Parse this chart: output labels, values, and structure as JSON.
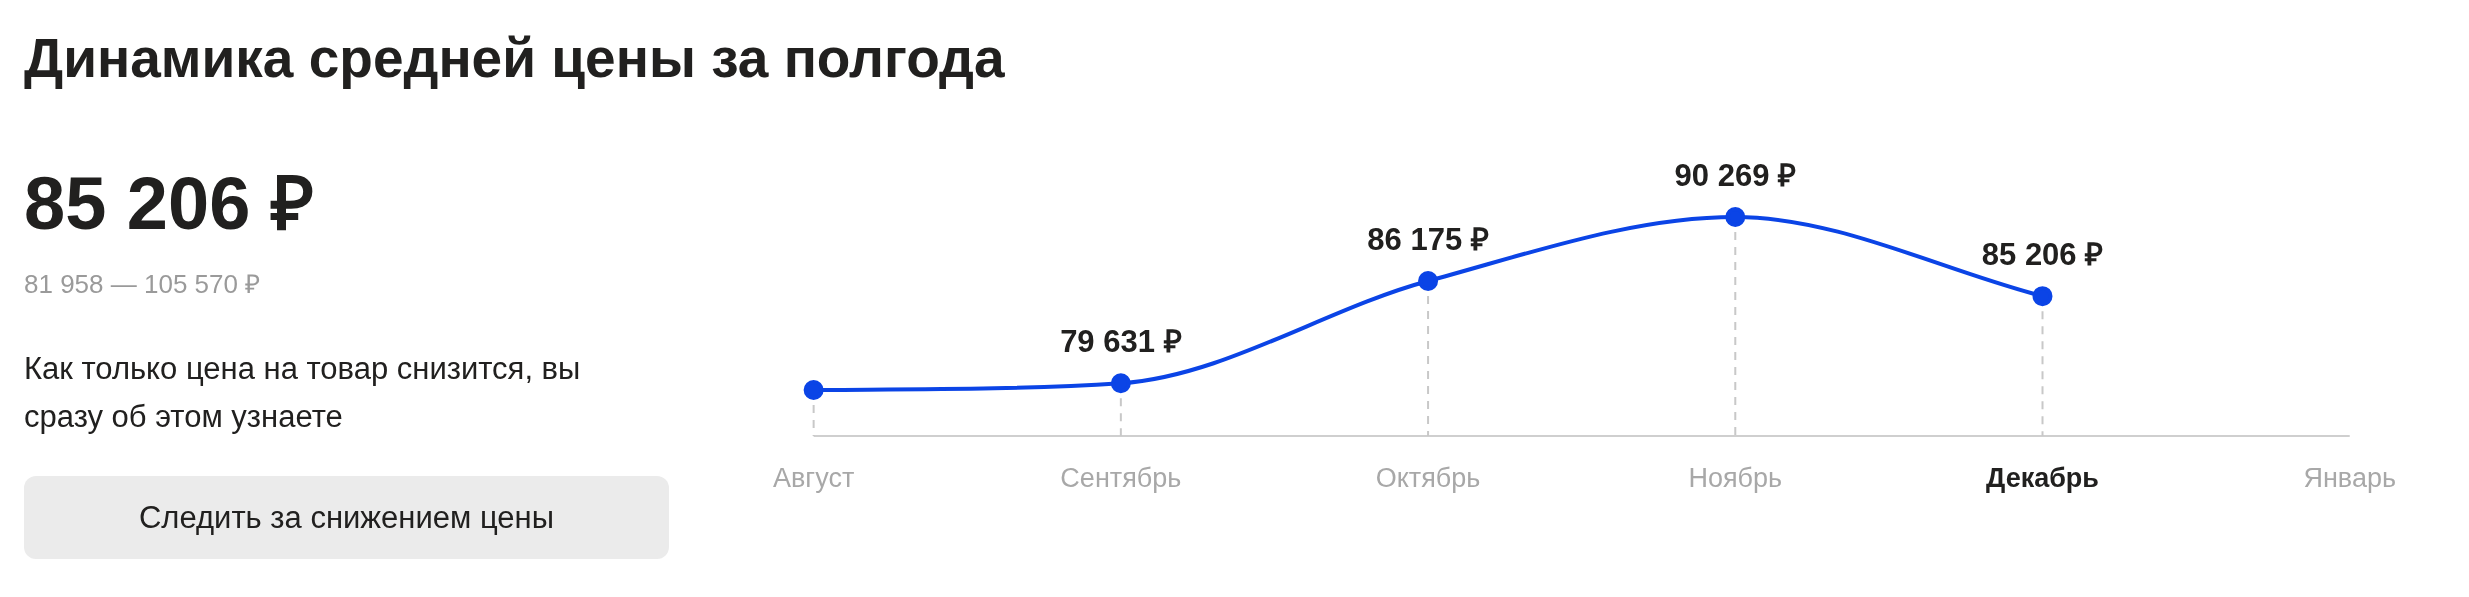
{
  "chart_data": {
    "type": "line",
    "title": "Динамика средней цены за полгода",
    "categories": [
      "Август",
      "Сентябрь",
      "Октябрь",
      "Ноябрь",
      "Декабрь",
      "Январь"
    ],
    "values": [
      79200,
      79631,
      86175,
      90269,
      85206,
      null
    ],
    "value_labels": [
      null,
      "79 631 ₽",
      "86 175 ₽",
      "90 269 ₽",
      "85 206 ₽",
      null
    ],
    "color": "#0b44e6",
    "tick_labels": "x",
    "marker": "circle",
    "line_style": "solid",
    "grid": "x",
    "legend": false,
    "annotations": [
      "85 206 ₽",
      "81 958 — 105 570 ₽",
      "Как только цена на товар снизится, вы сразу об этом узнаете",
      "Следить за снижением цены"
    ]
  }
}
